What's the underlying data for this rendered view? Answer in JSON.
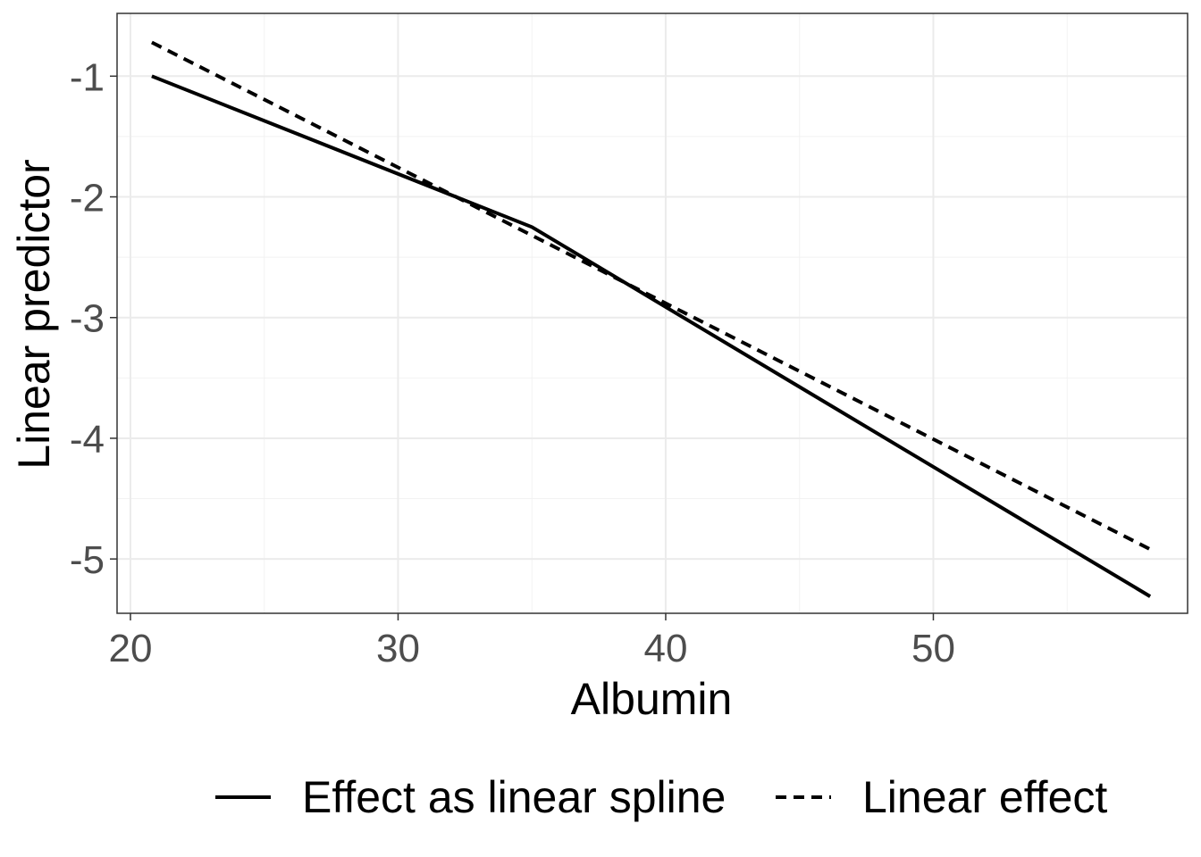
{
  "chart_data": {
    "type": "line",
    "title": "",
    "xlabel": "Albumin",
    "ylabel": "Linear predictor",
    "xlim": [
      19.5,
      59.5
    ],
    "ylim": [
      -5.45,
      -0.48
    ],
    "x_ticks": [
      20,
      30,
      40,
      50
    ],
    "x_tick_labels": [
      "20",
      "30",
      "40",
      "50"
    ],
    "y_ticks": [
      -1,
      -2,
      -3,
      -4,
      -5
    ],
    "y_tick_labels": [
      "-1",
      "-2",
      "-3",
      "-4",
      "-5"
    ],
    "grid": true,
    "legend_position": "bottom",
    "series": [
      {
        "name": "Effect as linear spline",
        "line_style": "solid",
        "color": "#000000",
        "x": [
          20.8,
          35,
          58.1
        ],
        "y": [
          -1.0,
          -2.25,
          -5.31
        ]
      },
      {
        "name": "Linear effect",
        "line_style": "dashed",
        "color": "#000000",
        "x": [
          20.8,
          58.1
        ],
        "y": [
          -0.72,
          -4.92
        ]
      }
    ]
  }
}
